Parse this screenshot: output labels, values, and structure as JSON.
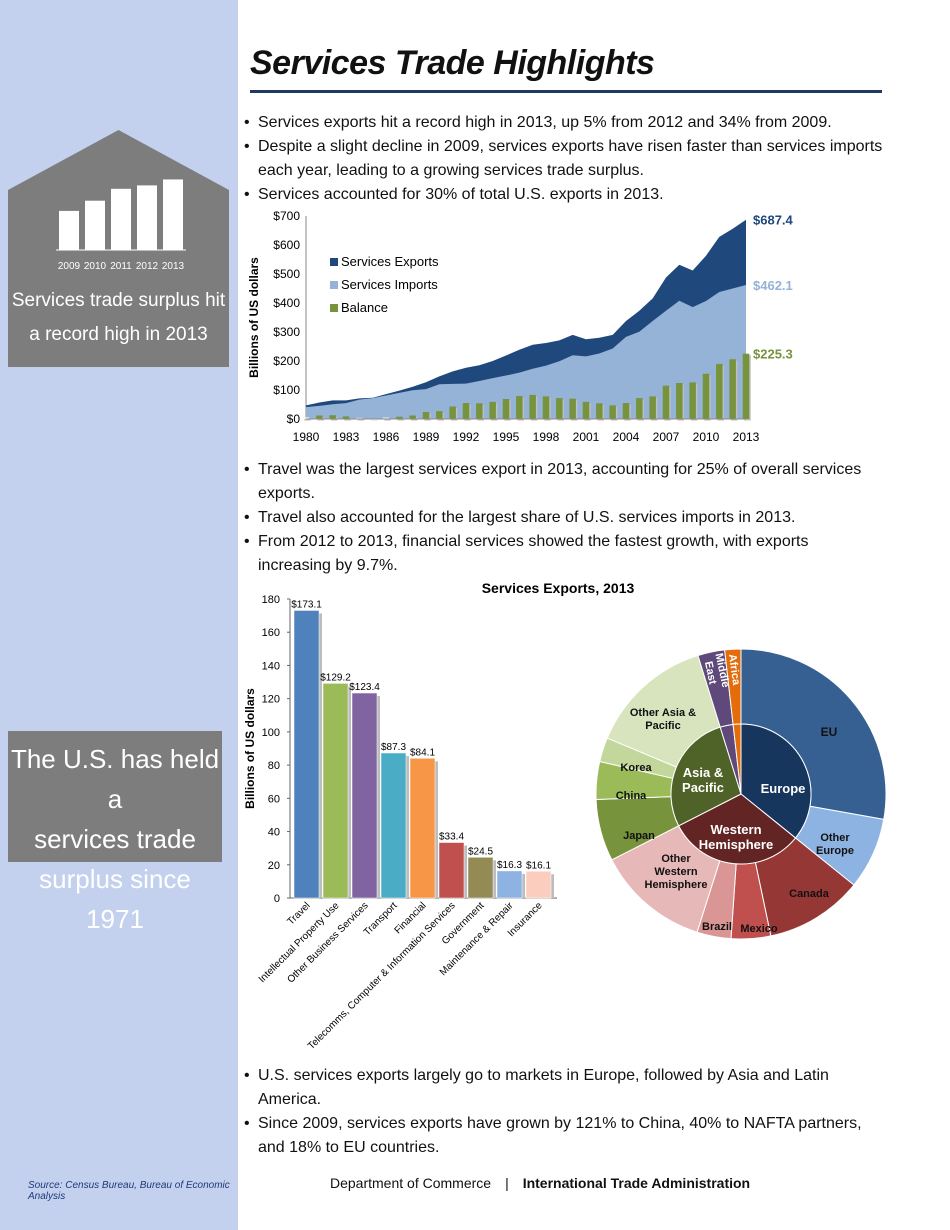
{
  "sidebar": {
    "box1": {
      "years": [
        "2009",
        "2010",
        "2011",
        "2012",
        "2013"
      ],
      "bar_levels": [
        0.46,
        0.58,
        0.72,
        0.76,
        0.83
      ],
      "caption_line1": "Services trade surplus hit",
      "caption_line2": "a record high in 2013"
    },
    "box2": {
      "line1": "The U.S. has held a",
      "line2": "services trade",
      "line3": "surplus since 1971"
    },
    "source": "Source: Census Bureau, Bureau of Economic Analysis"
  },
  "header": {
    "title": "Services Trade Highlights"
  },
  "bullets1": [
    " Services exports hit a record high in 2013, up 5% from 2012 and 34% from 2009.",
    "Despite a slight decline in 2009, services exports have risen faster than services imports each year, leading to a growing services trade surplus.",
    "Services accounted for 30% of total U.S. exports in 2013."
  ],
  "bullets2": [
    "Travel was the largest services export in 2013, accounting for 25% of overall services exports.",
    "Travel also accounted for the largest share of U.S. services imports in 2013.",
    "From 2012 to 2013, financial services showed the fastest growth, with exports increasing by 9.7%."
  ],
  "bullets3": [
    "U.S. services exports largely go to markets in Europe, followed by Asia and Latin America.",
    "Since 2009, services exports have grown by 121% to China, 40% to NAFTA partners, and 18% to EU countries."
  ],
  "footer": {
    "dept": "Department of Commerce",
    "separator": "|",
    "ita": "International Trade Administration"
  },
  "colors": {
    "exports": "#1f497d",
    "imports": "#95b3d7",
    "balance": "#77933c",
    "sidebar": "#c3d1ee",
    "grey_box": "#7d7d7d",
    "title_rule": "#1f3a5f"
  },
  "chart_data": [
    {
      "type": "area",
      "title": "",
      "xlabel": "",
      "ylabel": "Billions of US dollars",
      "x": [
        1980,
        1981,
        1982,
        1983,
        1984,
        1985,
        1986,
        1987,
        1988,
        1989,
        1990,
        1991,
        1992,
        1993,
        1994,
        1995,
        1996,
        1997,
        1998,
        1999,
        2000,
        2001,
        2002,
        2003,
        2004,
        2005,
        2006,
        2007,
        2008,
        2009,
        2010,
        2011,
        2012,
        2013
      ],
      "ylim": [
        0,
        700
      ],
      "yticks": [
        "$0",
        "$100",
        "$200",
        "$300",
        "$400",
        "$500",
        "$600",
        "$700"
      ],
      "xticks": [
        "1980",
        "1983",
        "1986",
        "1989",
        "1992",
        "1995",
        "1998",
        "2001",
        "2004",
        "2007",
        "2010",
        "2013"
      ],
      "legend_position": "left",
      "series": [
        {
          "name": "Services Exports",
          "chart": "area",
          "color": "#1f497d",
          "values": [
            47,
            57,
            64,
            64,
            71,
            73,
            86,
            98,
            111,
            127,
            147,
            164,
            177,
            185,
            200,
            219,
            239,
            256,
            262,
            271,
            290,
            275,
            280,
            290,
            338,
            373,
            416,
            488,
            532,
            512,
            563,
            628,
            656,
            687.4
          ],
          "end_label": "$687.4"
        },
        {
          "name": "Services Imports",
          "chart": "area",
          "color": "#95b3d7",
          "values": [
            41,
            45,
            51,
            55,
            67,
            72,
            81,
            90,
            99,
            103,
            120,
            121,
            122,
            131,
            141,
            150,
            160,
            173,
            184,
            199,
            220,
            216,
            226,
            243,
            283,
            301,
            338,
            373,
            408,
            386,
            407,
            438,
            450,
            462.1
          ],
          "end_label": "$462.1"
        },
        {
          "name": "Balance",
          "chart": "bar",
          "color": "#77933c",
          "values": [
            6,
            12,
            13,
            9,
            4,
            1,
            5,
            8,
            12,
            24,
            27,
            43,
            55,
            54,
            59,
            69,
            79,
            83,
            78,
            72,
            70,
            59,
            54,
            47,
            55,
            72,
            78,
            115,
            124,
            126,
            156,
            190,
            206,
            225.3
          ],
          "end_label": "$225.3"
        }
      ]
    },
    {
      "type": "bar",
      "title": "Services Exports, 2013",
      "xlabel": "",
      "ylabel": "Billions of US dollars",
      "ylim": [
        0,
        180
      ],
      "yticks": [
        "0",
        "20",
        "40",
        "60",
        "80",
        "100",
        "120",
        "140",
        "160",
        "180"
      ],
      "categories": [
        "Travel",
        "Intellectual Property Use",
        "Other Business Services",
        "Transport",
        "Financial",
        "Telecomms, Computer & Information Services",
        "Government",
        "Maintenance & Repair",
        "Insurance"
      ],
      "values": [
        173.1,
        129.2,
        123.4,
        87.3,
        84.1,
        33.4,
        24.5,
        16.3,
        16.1
      ],
      "labels": [
        "$173.1",
        "$129.2",
        "$123.4",
        "$87.3",
        "$84.1",
        "$33.4",
        "$24.5",
        "$16.3",
        "$16.1"
      ],
      "colors": [
        "#4f81bd",
        "#9bbb59",
        "#8064a2",
        "#4bacc6",
        "#f79646",
        "#c0504d",
        "#948a54",
        "#8db3e2",
        "#fbcdbf"
      ]
    },
    {
      "type": "pie",
      "title": "",
      "inner": [
        {
          "label": "Europe",
          "value": 35.8,
          "color": "#17365d"
        },
        {
          "label": "Western Hemisphere",
          "value": 31.7,
          "color": "#632523"
        },
        {
          "label": "Asia & Pacific",
          "value": 27.7,
          "color": "#4f6228"
        },
        {
          "label": "Middle East",
          "value": 3.0,
          "color": "#5f497a"
        },
        {
          "label": "Africa",
          "value": 1.8,
          "color": "#e46c0a"
        }
      ],
      "outer": [
        {
          "label": "EU",
          "value": 27.8,
          "color": "#366092"
        },
        {
          "label": "Other Europe",
          "value": 8.0,
          "color": "#8db3e2"
        },
        {
          "label": "Canada",
          "value": 10.9,
          "color": "#953735"
        },
        {
          "label": "Mexico",
          "value": 4.4,
          "color": "#c0504d"
        },
        {
          "label": "Brazil",
          "value": 3.8,
          "color": "#d99694"
        },
        {
          "label": "Other Western Hemisphere",
          "value": 12.6,
          "color": "#e6b9b8"
        },
        {
          "label": "Japan",
          "value": 6.9,
          "color": "#77933c"
        },
        {
          "label": "China",
          "value": 4.2,
          "color": "#9bbb59"
        },
        {
          "label": "Korea",
          "value": 2.7,
          "color": "#c3d69b"
        },
        {
          "label": "Other Asia & Pacific",
          "value": 13.9,
          "color": "#d7e4bd"
        },
        {
          "label": "Middle East",
          "value": 3.0,
          "color": "#5f497a"
        },
        {
          "label": "Africa",
          "value": 1.8,
          "color": "#e46c0a"
        }
      ]
    }
  ]
}
